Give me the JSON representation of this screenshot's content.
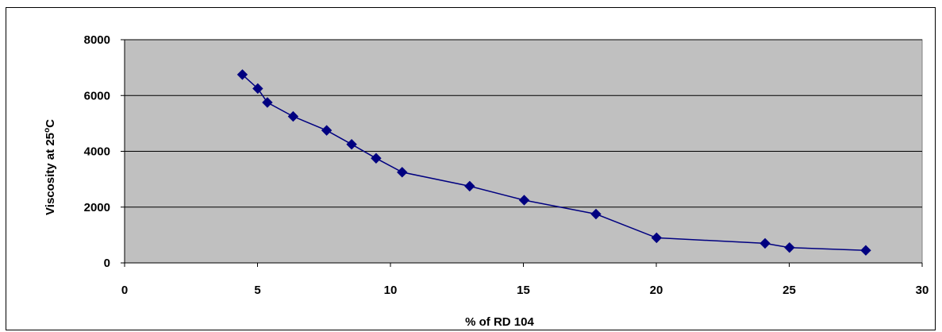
{
  "chart_data": {
    "type": "line",
    "title": "",
    "xlabel": "% of RD 104",
    "ylabel_main": "Viscosity at 25",
    "ylabel_sup": "o",
    "ylabel_end": "C",
    "xlim": [
      0,
      30
    ],
    "ylim": [
      0,
      8000
    ],
    "x_ticks": [
      "0",
      "5",
      "10",
      "15",
      "20",
      "25",
      "30"
    ],
    "y_ticks": [
      "0",
      "2000",
      "4000",
      "6000",
      "8000"
    ],
    "grid": "horizontal",
    "legend": "none",
    "colors": {
      "plot_area": "#c0c0c0",
      "series": "#000080",
      "gridline": "#000000"
    },
    "series": [
      {
        "x": [
          4.43,
          5.01,
          5.37,
          6.34,
          7.6,
          8.54,
          9.46,
          10.44,
          12.98,
          15.03,
          17.73,
          20.01,
          24.09,
          25.01,
          27.88
        ],
        "y": [
          6750,
          6250,
          5750,
          5250,
          4750,
          4250,
          3750,
          3250,
          2750,
          2250,
          1750,
          900,
          700,
          550,
          450
        ]
      }
    ]
  }
}
